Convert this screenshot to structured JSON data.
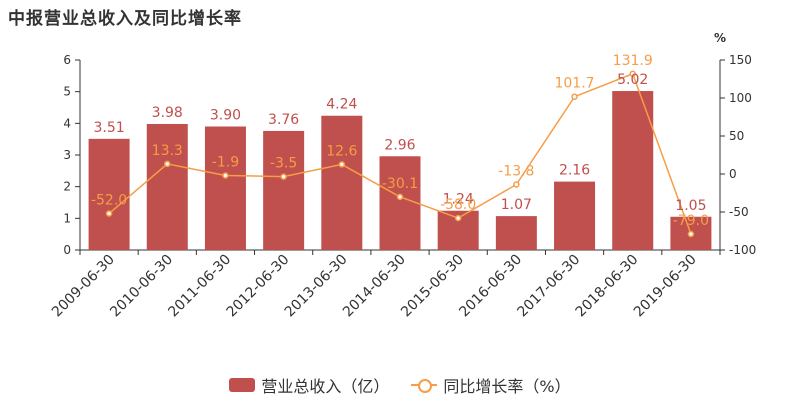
{
  "title": "中报营业总收入及同比增长率",
  "chart_data": {
    "type": "bar",
    "categories": [
      "2009-06-30",
      "2010-06-30",
      "2011-06-30",
      "2012-06-30",
      "2013-06-30",
      "2014-06-30",
      "2015-06-30",
      "2016-06-30",
      "2017-06-30",
      "2018-06-30",
      "2019-06-30"
    ],
    "series": [
      {
        "name": "营业总收入（亿）",
        "type": "bar",
        "axis": "left",
        "color": "#c0504d",
        "values": [
          3.51,
          3.98,
          3.9,
          3.76,
          4.24,
          2.96,
          1.24,
          1.07,
          2.16,
          5.02,
          1.05
        ]
      },
      {
        "name": "同比增长率（%）",
        "type": "line",
        "axis": "right",
        "color": "#f79c47",
        "values": [
          -52.0,
          13.3,
          -1.9,
          -3.5,
          12.6,
          -30.1,
          -58.0,
          -13.8,
          101.7,
          131.9,
          -79.0
        ]
      }
    ],
    "ylim_left": [
      0,
      6
    ],
    "yticks_left": [
      0,
      1,
      2,
      3,
      4,
      5,
      6
    ],
    "ylim_right": [
      -100,
      150
    ],
    "yticks_right": [
      -100,
      -50,
      0,
      50,
      100,
      150
    ],
    "yunit_right": "%",
    "bar_labels": [
      "3.51",
      "3.98",
      "3.90",
      "3.76",
      "4.24",
      "2.96",
      "1.24",
      "1.07",
      "2.16",
      "5.02",
      "1.05"
    ],
    "line_labels": [
      "-52.0",
      "13.3",
      "-1.9",
      "-3.5",
      "12.6",
      "-30.1",
      "-58.0",
      "-13.8",
      "101.7",
      "131.9",
      "-79.0"
    ],
    "grid": false,
    "legend_position": "bottom"
  },
  "legend": {
    "bar_label": "营业总收入（亿）",
    "line_label": "同比增长率（%）"
  }
}
